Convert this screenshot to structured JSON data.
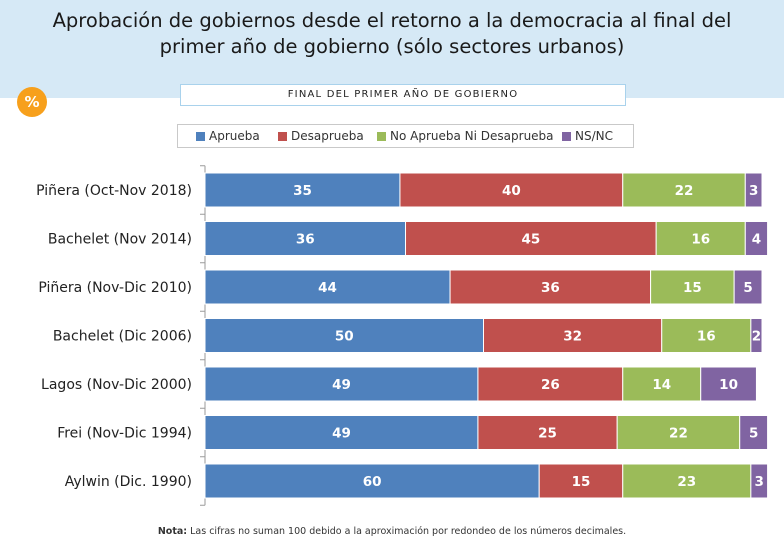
{
  "title": "Aprobación de gobiernos desde el retorno a la democracia al final del primer año de gobierno (sólo sectores urbanos)",
  "badge": "%",
  "note": {
    "label": "Nota:",
    "text": "Las cifras no suman 100 debido a la aproximación por redondeo de los números decimales."
  },
  "colors": {
    "aprueba": "#4f81bd",
    "desaprueba": "#c0504d",
    "ni": "#9bbb59",
    "nsnc": "#8064a2",
    "header": "#d6e9f6",
    "badge": "#f7a01c"
  },
  "chart_data": {
    "type": "bar",
    "orientation": "horizontal",
    "stacked": true,
    "title": "FINAL DEL PRIMER AÑO DE GOBIERNO",
    "unit": "%",
    "categories": [
      "Piñera (Oct-Nov 2018)",
      "Bachelet (Nov 2014)",
      "Piñera (Nov-Dic 2010)",
      "Bachelet (Dic 2006)",
      "Lagos (Nov-Dic 2000)",
      "Frei (Nov-Dic 1994)",
      "Aylwin (Dic. 1990)"
    ],
    "series": [
      {
        "name": "Aprueba",
        "color": "#4f81bd",
        "values": [
          35,
          36,
          44,
          50,
          49,
          49,
          60
        ]
      },
      {
        "name": "Desaprueba",
        "color": "#c0504d",
        "values": [
          40,
          45,
          36,
          32,
          26,
          25,
          15
        ]
      },
      {
        "name": "No Aprueba Ni Desaprueba",
        "color": "#9bbb59",
        "values": [
          22,
          16,
          15,
          16,
          14,
          22,
          23
        ]
      },
      {
        "name": "NS/NC",
        "color": "#8064a2",
        "values": [
          3,
          4,
          5,
          2,
          10,
          5,
          3
        ]
      }
    ],
    "legend": "top"
  }
}
